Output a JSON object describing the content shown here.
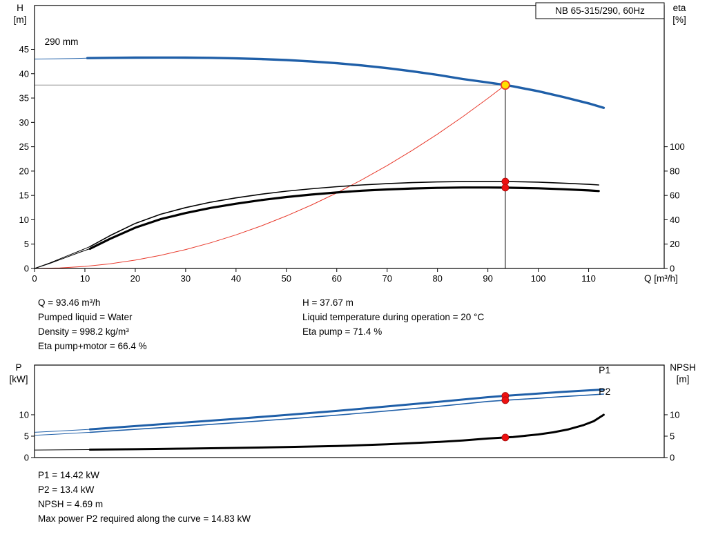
{
  "chart_data": [
    {
      "type": "line",
      "name": "qh-efficiency-chart",
      "title_box": "NB 65-315/290, 60Hz",
      "x_axis": {
        "label": "Q [m³/h]",
        "min": 0,
        "max": 125,
        "ticks": [
          0,
          10,
          20,
          30,
          40,
          50,
          60,
          70,
          80,
          90,
          100,
          110
        ]
      },
      "y_left": {
        "label_lines": [
          "H",
          "[m]"
        ],
        "min": 0,
        "max": 54,
        "ticks": [
          0,
          5,
          10,
          15,
          20,
          25,
          30,
          35,
          40,
          45
        ]
      },
      "y_right": {
        "label_lines": [
          "eta",
          "[%]"
        ],
        "min": 0,
        "max": 216,
        "ticks": [
          0,
          20,
          40,
          60,
          80,
          100
        ]
      },
      "series": [
        {
          "name": "head-curve-lead",
          "axis": "left",
          "color": "#1f5fa8",
          "width": 1,
          "points": [
            [
              0,
              43.0
            ],
            [
              4,
              43.05
            ],
            [
              8,
              43.12
            ],
            [
              10.5,
              43.2
            ]
          ]
        },
        {
          "name": "head-curve-290mm",
          "axis": "left",
          "color": "#1f5fa8",
          "width": 3.4,
          "points": [
            [
              10.5,
              43.2
            ],
            [
              15,
              43.25
            ],
            [
              20,
              43.3
            ],
            [
              25,
              43.32
            ],
            [
              30,
              43.3
            ],
            [
              35,
              43.25
            ],
            [
              40,
              43.15
            ],
            [
              45,
              43.0
            ],
            [
              50,
              42.8
            ],
            [
              55,
              42.5
            ],
            [
              60,
              42.15
            ],
            [
              65,
              41.7
            ],
            [
              70,
              41.15
            ],
            [
              75,
              40.5
            ],
            [
              80,
              39.75
            ],
            [
              85,
              38.9
            ],
            [
              90,
              38.2
            ],
            [
              93.46,
              37.67
            ],
            [
              95,
              37.4
            ],
            [
              100,
              36.4
            ],
            [
              105,
              35.2
            ],
            [
              110,
              33.9
            ],
            [
              113,
              33.0
            ]
          ]
        },
        {
          "name": "system-curve",
          "axis": "left",
          "color": "#e8392b",
          "width": 1,
          "points": [
            [
              0,
              0
            ],
            [
              5,
              0.11
            ],
            [
              10,
              0.43
            ],
            [
              15,
              0.97
            ],
            [
              20,
              1.72
            ],
            [
              25,
              2.69
            ],
            [
              30,
              3.88
            ],
            [
              35,
              5.28
            ],
            [
              40,
              6.9
            ],
            [
              45,
              8.73
            ],
            [
              50,
              10.78
            ],
            [
              55,
              13.04
            ],
            [
              60,
              15.52
            ],
            [
              65,
              18.22
            ],
            [
              70,
              21.13
            ],
            [
              75,
              24.26
            ],
            [
              80,
              27.6
            ],
            [
              85,
              31.16
            ],
            [
              90,
              34.93
            ],
            [
              93.46,
              37.67
            ]
          ]
        },
        {
          "name": "eta-pump-lead",
          "axis": "right",
          "color": "#000000",
          "width": 1,
          "points": [
            [
              0,
              0
            ],
            [
              3,
              4.5
            ],
            [
              6,
              9.5
            ],
            [
              9,
              14.5
            ],
            [
              11,
              18
            ]
          ]
        },
        {
          "name": "eta-pump",
          "axis": "right",
          "color": "#000000",
          "width": 1.6,
          "points": [
            [
              11,
              18
            ],
            [
              15,
              27
            ],
            [
              20,
              37
            ],
            [
              25,
              44.5
            ],
            [
              30,
              50
            ],
            [
              35,
              54.5
            ],
            [
              40,
              58
            ],
            [
              45,
              61
            ],
            [
              50,
              63.5
            ],
            [
              55,
              65.5
            ],
            [
              60,
              67.2
            ],
            [
              65,
              68.6
            ],
            [
              70,
              69.7
            ],
            [
              75,
              70.5
            ],
            [
              80,
              71.1
            ],
            [
              85,
              71.4
            ],
            [
              90,
              71.5
            ],
            [
              93.46,
              71.4
            ],
            [
              95,
              71.3
            ],
            [
              100,
              70.9
            ],
            [
              105,
              70.1
            ],
            [
              110,
              69.1
            ],
            [
              112,
              68.6
            ]
          ]
        },
        {
          "name": "eta-pump-motor-lead",
          "axis": "right",
          "color": "#000000",
          "width": 1,
          "points": [
            [
              0,
              0
            ],
            [
              3,
              4.1
            ],
            [
              6,
              8.7
            ],
            [
              9,
              13.3
            ],
            [
              11,
              16.2
            ]
          ]
        },
        {
          "name": "eta-pump-motor",
          "axis": "right",
          "color": "#000000",
          "width": 3.2,
          "points": [
            [
              11,
              16.2
            ],
            [
              15,
              24.3
            ],
            [
              20,
              33.5
            ],
            [
              25,
              40.5
            ],
            [
              30,
              45.5
            ],
            [
              35,
              49.8
            ],
            [
              40,
              53.2
            ],
            [
              45,
              56.2
            ],
            [
              50,
              58.7
            ],
            [
              55,
              60.7
            ],
            [
              60,
              62.4
            ],
            [
              65,
              63.9
            ],
            [
              70,
              64.9
            ],
            [
              75,
              65.7
            ],
            [
              80,
              66.2
            ],
            [
              85,
              66.5
            ],
            [
              90,
              66.5
            ],
            [
              93.46,
              66.4
            ],
            [
              95,
              66.3
            ],
            [
              100,
              65.9
            ],
            [
              105,
              65.1
            ],
            [
              110,
              64.1
            ],
            [
              112,
              63.6
            ]
          ]
        }
      ],
      "crosshair": {
        "q": 93.46,
        "value": 37.67,
        "axis": "left"
      },
      "markers": [
        {
          "type": "dot",
          "q": 93.46,
          "value": 71.4,
          "axis": "right"
        },
        {
          "type": "dot",
          "q": 93.46,
          "value": 66.4,
          "axis": "right"
        },
        {
          "type": "duty",
          "q": 93.46,
          "value": 37.67,
          "axis": "left"
        }
      ],
      "annotations": [
        {
          "text": "290 mm",
          "q": 2,
          "value": 45.9,
          "axis": "left",
          "color": "#000000",
          "anchor": "start",
          "size": 13.5
        }
      ]
    },
    {
      "type": "line",
      "name": "power-npsh-chart",
      "x_axis": {
        "label": "",
        "min": 0,
        "max": 125,
        "ticks": []
      },
      "y_left": {
        "label_lines": [
          "P",
          "[kW]"
        ],
        "min": 0,
        "max": 21.6,
        "ticks": [
          0,
          5,
          10
        ]
      },
      "y_right": {
        "label_lines": [
          "NPSH",
          "[m]"
        ],
        "min": 0,
        "max": 21.6,
        "ticks": [
          0,
          5,
          10
        ]
      },
      "series": [
        {
          "name": "p1-lead",
          "axis": "left",
          "color": "#1f5fa8",
          "width": 1,
          "points": [
            [
              0,
              5.9
            ],
            [
              5,
              6.2
            ],
            [
              11,
              6.6
            ]
          ]
        },
        {
          "name": "p1-curve",
          "axis": "left",
          "color": "#1f5fa8",
          "width": 3,
          "points": [
            [
              11,
              6.6
            ],
            [
              20,
              7.35
            ],
            [
              30,
              8.2
            ],
            [
              40,
              9.05
            ],
            [
              50,
              9.95
            ],
            [
              60,
              10.9
            ],
            [
              70,
              11.95
            ],
            [
              80,
              13.0
            ],
            [
              90,
              14.1
            ],
            [
              93.46,
              14.42
            ],
            [
              100,
              14.95
            ],
            [
              105,
              15.35
            ],
            [
              110,
              15.7
            ],
            [
              113,
              15.9
            ]
          ]
        },
        {
          "name": "p2-lead",
          "axis": "left",
          "color": "#1f5fa8",
          "width": 1,
          "points": [
            [
              0,
              5.2
            ],
            [
              5,
              5.5
            ],
            [
              11,
              5.9
            ]
          ]
        },
        {
          "name": "p2-curve",
          "axis": "left",
          "color": "#1f5fa8",
          "width": 1.6,
          "points": [
            [
              11,
              5.9
            ],
            [
              20,
              6.6
            ],
            [
              30,
              7.35
            ],
            [
              40,
              8.15
            ],
            [
              50,
              9.0
            ],
            [
              60,
              9.9
            ],
            [
              70,
              10.9
            ],
            [
              80,
              11.95
            ],
            [
              90,
              13.1
            ],
            [
              93.46,
              13.4
            ],
            [
              100,
              13.85
            ],
            [
              105,
              14.25
            ],
            [
              110,
              14.6
            ],
            [
              113,
              14.83
            ]
          ]
        },
        {
          "name": "npsh-lead",
          "axis": "right",
          "color": "#000000",
          "width": 1,
          "points": [
            [
              0,
              1.75
            ],
            [
              6,
              1.8
            ],
            [
              11,
              1.85
            ]
          ]
        },
        {
          "name": "npsh-curve",
          "axis": "right",
          "color": "#000000",
          "width": 3,
          "points": [
            [
              11,
              1.85
            ],
            [
              20,
              1.95
            ],
            [
              30,
              2.1
            ],
            [
              40,
              2.25
            ],
            [
              50,
              2.45
            ],
            [
              60,
              2.7
            ],
            [
              70,
              3.1
            ],
            [
              80,
              3.65
            ],
            [
              85,
              4.0
            ],
            [
              90,
              4.45
            ],
            [
              93.46,
              4.69
            ],
            [
              95,
              4.8
            ],
            [
              100,
              5.4
            ],
            [
              103,
              5.9
            ],
            [
              106,
              6.6
            ],
            [
              109,
              7.6
            ],
            [
              111,
              8.5
            ],
            [
              113,
              10.0
            ]
          ]
        }
      ],
      "markers": [
        {
          "type": "dot",
          "q": 93.46,
          "value": 14.42,
          "axis": "left"
        },
        {
          "type": "dot",
          "q": 93.46,
          "value": 13.4,
          "axis": "left"
        },
        {
          "type": "dot",
          "q": 93.46,
          "value": 4.69,
          "axis": "right"
        }
      ],
      "annotations": [
        {
          "text": "P1",
          "q": 112,
          "value": 19.7,
          "axis": "left",
          "color": "#1f5fa8",
          "anchor": "start",
          "size": 14
        },
        {
          "text": "P2",
          "q": 112,
          "value": 14.7,
          "axis": "left",
          "color": "#1f5fa8",
          "anchor": "start",
          "size": 14
        }
      ]
    }
  ],
  "info_blocks": {
    "operating_left": [
      "Q = 93.46 m³/h",
      "Pumped liquid = Water",
      "Density = 998.2 kg/m³",
      "Eta pump+motor = 66.4 %"
    ],
    "operating_right": [
      "H = 37.67 m",
      "Liquid temperature during operation = 20 °C",
      "Eta pump = 71.4 %"
    ],
    "power": [
      "P1 = 14.42 kW",
      "P2 = 13.4 kW",
      "NPSH = 4.69 m",
      "Max power P2 required along the curve = 14.83 kW"
    ]
  },
  "marker_colors": {
    "dot_fill": "#ee1111",
    "dot_edge": "#a50d0d",
    "duty_fill": "#ffdf00",
    "duty_edge": "#e8392b"
  }
}
